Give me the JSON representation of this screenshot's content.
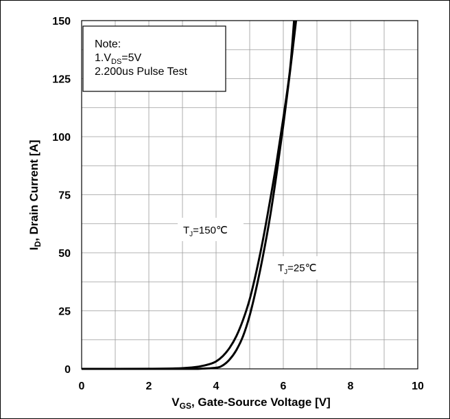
{
  "chart_data": {
    "type": "line",
    "xlabel": "V",
    "xlabel_sub": "GS",
    "xlabel_rest": ", Gate-Source Voltage [V]",
    "ylabel": "I",
    "ylabel_sub": "D",
    "ylabel_rest": ", Drain Current [A]",
    "xlim": [
      0,
      10
    ],
    "ylim": [
      0,
      150
    ],
    "xticks": [
      0,
      2,
      4,
      6,
      8,
      10
    ],
    "yticks": [
      0,
      25,
      50,
      75,
      100,
      125,
      150
    ],
    "x_minor_step": 1,
    "y_minor_step": 12.5,
    "grid": true,
    "note": {
      "title": "Note:",
      "line1_pre": "1.V",
      "line1_sub": "DS",
      "line1_post": "=5V",
      "line2": "2.200us Pulse Test"
    },
    "series": [
      {
        "label_pre": "T",
        "label_sub": "J",
        "label_post": "=150℃",
        "color": "#000000",
        "x": [
          0,
          2,
          3,
          3.5,
          3.8,
          4.0,
          4.2,
          4.4,
          4.6,
          4.8,
          5.0,
          5.2,
          5.4,
          5.6,
          5.8,
          6.0,
          6.2,
          6.32
        ],
        "y": [
          0,
          0.05,
          0.3,
          1.0,
          2.0,
          3.2,
          5.5,
          9,
          14,
          21,
          30,
          42,
          56,
          72,
          89,
          108,
          129,
          150
        ]
      },
      {
        "label_pre": "T",
        "label_sub": "J",
        "label_post": "=25℃",
        "color": "#000000",
        "x": [
          0,
          3,
          3.5,
          4.0,
          4.2,
          4.4,
          4.6,
          4.8,
          5.0,
          5.2,
          5.4,
          5.6,
          5.8,
          6.0,
          6.2,
          6.38
        ],
        "y": [
          0,
          0,
          0.05,
          0.5,
          1.5,
          4,
          8,
          14,
          23,
          35,
          49,
          65,
          84,
          105,
          128,
          150
        ]
      }
    ]
  }
}
